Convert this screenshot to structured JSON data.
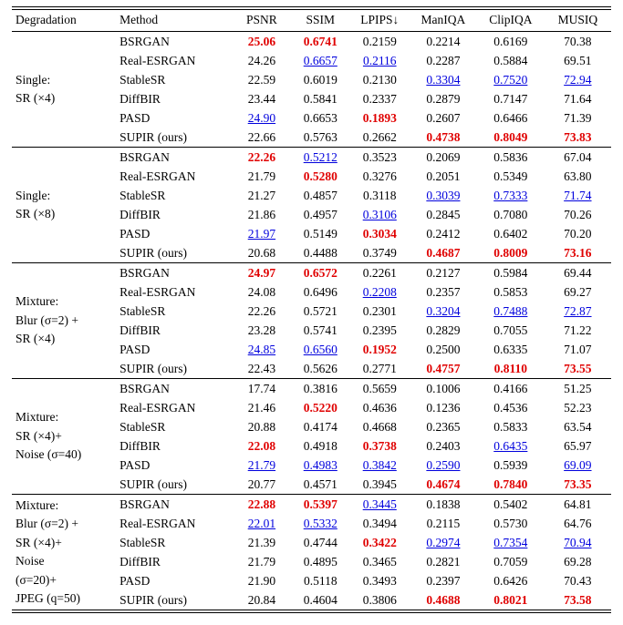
{
  "colors": {
    "best": "#e00000",
    "second": "#0000dd"
  },
  "table": {
    "columns": [
      "Degradation",
      "Method",
      "PSNR",
      "SSIM",
      "LPIPS↓",
      "ManIQA",
      "ClipIQA",
      "MUSIQ"
    ],
    "groups": [
      {
        "degradation_lines": [
          "Single:",
          "SR (×4)"
        ],
        "rows": [
          {
            "method": "BSRGAN",
            "cells": [
              {
                "v": "25.06",
                "s": "best"
              },
              {
                "v": "0.6741",
                "s": "best"
              },
              {
                "v": "0.2159",
                "s": ""
              },
              {
                "v": "0.2214",
                "s": ""
              },
              {
                "v": "0.6169",
                "s": ""
              },
              {
                "v": "70.38",
                "s": ""
              }
            ]
          },
          {
            "method": "Real-ESRGAN",
            "cells": [
              {
                "v": "24.26",
                "s": ""
              },
              {
                "v": "0.6657",
                "s": "second"
              },
              {
                "v": "0.2116",
                "s": "second"
              },
              {
                "v": "0.2287",
                "s": ""
              },
              {
                "v": "0.5884",
                "s": ""
              },
              {
                "v": "69.51",
                "s": ""
              }
            ]
          },
          {
            "method": "StableSR",
            "cells": [
              {
                "v": "22.59",
                "s": ""
              },
              {
                "v": "0.6019",
                "s": ""
              },
              {
                "v": "0.2130",
                "s": ""
              },
              {
                "v": "0.3304",
                "s": "second"
              },
              {
                "v": "0.7520",
                "s": "second"
              },
              {
                "v": "72.94",
                "s": "second"
              }
            ]
          },
          {
            "method": "DiffBIR",
            "cells": [
              {
                "v": "23.44",
                "s": ""
              },
              {
                "v": "0.5841",
                "s": ""
              },
              {
                "v": "0.2337",
                "s": ""
              },
              {
                "v": "0.2879",
                "s": ""
              },
              {
                "v": "0.7147",
                "s": ""
              },
              {
                "v": "71.64",
                "s": ""
              }
            ]
          },
          {
            "method": "PASD",
            "cells": [
              {
                "v": "24.90",
                "s": "second"
              },
              {
                "v": "0.6653",
                "s": ""
              },
              {
                "v": "0.1893",
                "s": "best"
              },
              {
                "v": "0.2607",
                "s": ""
              },
              {
                "v": "0.6466",
                "s": ""
              },
              {
                "v": "71.39",
                "s": ""
              }
            ]
          },
          {
            "method": "SUPIR (ours)",
            "cells": [
              {
                "v": "22.66",
                "s": ""
              },
              {
                "v": "0.5763",
                "s": ""
              },
              {
                "v": "0.2662",
                "s": ""
              },
              {
                "v": "0.4738",
                "s": "best"
              },
              {
                "v": "0.8049",
                "s": "best"
              },
              {
                "v": "73.83",
                "s": "best"
              }
            ]
          }
        ]
      },
      {
        "degradation_lines": [
          "Single:",
          "SR (×8)"
        ],
        "rows": [
          {
            "method": "BSRGAN",
            "cells": [
              {
                "v": "22.26",
                "s": "best"
              },
              {
                "v": "0.5212",
                "s": "second"
              },
              {
                "v": "0.3523",
                "s": ""
              },
              {
                "v": "0.2069",
                "s": ""
              },
              {
                "v": "0.5836",
                "s": ""
              },
              {
                "v": "67.04",
                "s": ""
              }
            ]
          },
          {
            "method": "Real-ESRGAN",
            "cells": [
              {
                "v": "21.79",
                "s": ""
              },
              {
                "v": "0.5280",
                "s": "best"
              },
              {
                "v": "0.3276",
                "s": ""
              },
              {
                "v": "0.2051",
                "s": ""
              },
              {
                "v": "0.5349",
                "s": ""
              },
              {
                "v": "63.80",
                "s": ""
              }
            ]
          },
          {
            "method": "StableSR",
            "cells": [
              {
                "v": "21.27",
                "s": ""
              },
              {
                "v": "0.4857",
                "s": ""
              },
              {
                "v": "0.3118",
                "s": ""
              },
              {
                "v": "0.3039",
                "s": "second"
              },
              {
                "v": "0.7333",
                "s": "second"
              },
              {
                "v": "71.74",
                "s": "second"
              }
            ]
          },
          {
            "method": "DiffBIR",
            "cells": [
              {
                "v": "21.86",
                "s": ""
              },
              {
                "v": "0.4957",
                "s": ""
              },
              {
                "v": "0.3106",
                "s": "second"
              },
              {
                "v": "0.2845",
                "s": ""
              },
              {
                "v": "0.7080",
                "s": ""
              },
              {
                "v": "70.26",
                "s": ""
              }
            ]
          },
          {
            "method": "PASD",
            "cells": [
              {
                "v": "21.97",
                "s": "second"
              },
              {
                "v": "0.5149",
                "s": ""
              },
              {
                "v": "0.3034",
                "s": "best"
              },
              {
                "v": "0.2412",
                "s": ""
              },
              {
                "v": "0.6402",
                "s": ""
              },
              {
                "v": "70.20",
                "s": ""
              }
            ]
          },
          {
            "method": "SUPIR (ours)",
            "cells": [
              {
                "v": "20.68",
                "s": ""
              },
              {
                "v": "0.4488",
                "s": ""
              },
              {
                "v": "0.3749",
                "s": ""
              },
              {
                "v": "0.4687",
                "s": "best"
              },
              {
                "v": "0.8009",
                "s": "best"
              },
              {
                "v": "73.16",
                "s": "best"
              }
            ]
          }
        ]
      },
      {
        "degradation_lines": [
          "Mixture:",
          "Blur (σ=2) +",
          "SR (×4)"
        ],
        "rows": [
          {
            "method": "BSRGAN",
            "cells": [
              {
                "v": "24.97",
                "s": "best"
              },
              {
                "v": "0.6572",
                "s": "best"
              },
              {
                "v": "0.2261",
                "s": ""
              },
              {
                "v": "0.2127",
                "s": ""
              },
              {
                "v": "0.5984",
                "s": ""
              },
              {
                "v": "69.44",
                "s": ""
              }
            ]
          },
          {
            "method": "Real-ESRGAN",
            "cells": [
              {
                "v": "24.08",
                "s": ""
              },
              {
                "v": "0.6496",
                "s": ""
              },
              {
                "v": "0.2208",
                "s": "second"
              },
              {
                "v": "0.2357",
                "s": ""
              },
              {
                "v": "0.5853",
                "s": ""
              },
              {
                "v": "69.27",
                "s": ""
              }
            ]
          },
          {
            "method": "StableSR",
            "cells": [
              {
                "v": "22.26",
                "s": ""
              },
              {
                "v": "0.5721",
                "s": ""
              },
              {
                "v": "0.2301",
                "s": ""
              },
              {
                "v": "0.3204",
                "s": "second"
              },
              {
                "v": "0.7488",
                "s": "second"
              },
              {
                "v": "72.87",
                "s": "second"
              }
            ]
          },
          {
            "method": "DiffBIR",
            "cells": [
              {
                "v": "23.28",
                "s": ""
              },
              {
                "v": "0.5741",
                "s": ""
              },
              {
                "v": "0.2395",
                "s": ""
              },
              {
                "v": "0.2829",
                "s": ""
              },
              {
                "v": "0.7055",
                "s": ""
              },
              {
                "v": "71.22",
                "s": ""
              }
            ]
          },
          {
            "method": "PASD",
            "cells": [
              {
                "v": "24.85",
                "s": "second"
              },
              {
                "v": "0.6560",
                "s": "second"
              },
              {
                "v": "0.1952",
                "s": "best"
              },
              {
                "v": "0.2500",
                "s": ""
              },
              {
                "v": "0.6335",
                "s": ""
              },
              {
                "v": "71.07",
                "s": ""
              }
            ]
          },
          {
            "method": "SUPIR (ours)",
            "cells": [
              {
                "v": "22.43",
                "s": ""
              },
              {
                "v": "0.5626",
                "s": ""
              },
              {
                "v": "0.2771",
                "s": ""
              },
              {
                "v": "0.4757",
                "s": "best"
              },
              {
                "v": "0.8110",
                "s": "best"
              },
              {
                "v": "73.55",
                "s": "best"
              }
            ]
          }
        ]
      },
      {
        "degradation_lines": [
          "Mixture:",
          "SR (×4)+",
          "Noise (σ=40)"
        ],
        "rows": [
          {
            "method": "BSRGAN",
            "cells": [
              {
                "v": "17.74",
                "s": ""
              },
              {
                "v": "0.3816",
                "s": ""
              },
              {
                "v": "0.5659",
                "s": ""
              },
              {
                "v": "0.1006",
                "s": ""
              },
              {
                "v": "0.4166",
                "s": ""
              },
              {
                "v": "51.25",
                "s": ""
              }
            ]
          },
          {
            "method": "Real-ESRGAN",
            "cells": [
              {
                "v": "21.46",
                "s": ""
              },
              {
                "v": "0.5220",
                "s": "best"
              },
              {
                "v": "0.4636",
                "s": ""
              },
              {
                "v": "0.1236",
                "s": ""
              },
              {
                "v": "0.4536",
                "s": ""
              },
              {
                "v": "52.23",
                "s": ""
              }
            ]
          },
          {
            "method": "StableSR",
            "cells": [
              {
                "v": "20.88",
                "s": ""
              },
              {
                "v": "0.4174",
                "s": ""
              },
              {
                "v": "0.4668",
                "s": ""
              },
              {
                "v": "0.2365",
                "s": ""
              },
              {
                "v": "0.5833",
                "s": ""
              },
              {
                "v": "63.54",
                "s": ""
              }
            ]
          },
          {
            "method": "DiffBIR",
            "cells": [
              {
                "v": "22.08",
                "s": "best"
              },
              {
                "v": "0.4918",
                "s": ""
              },
              {
                "v": "0.3738",
                "s": "best"
              },
              {
                "v": "0.2403",
                "s": ""
              },
              {
                "v": "0.6435",
                "s": "second"
              },
              {
                "v": "65.97",
                "s": ""
              }
            ]
          },
          {
            "method": "PASD",
            "cells": [
              {
                "v": "21.79",
                "s": "second"
              },
              {
                "v": "0.4983",
                "s": "second"
              },
              {
                "v": "0.3842",
                "s": "second"
              },
              {
                "v": "0.2590",
                "s": "second"
              },
              {
                "v": "0.5939",
                "s": ""
              },
              {
                "v": "69.09",
                "s": "second"
              }
            ]
          },
          {
            "method": "SUPIR (ours)",
            "cells": [
              {
                "v": "20.77",
                "s": ""
              },
              {
                "v": "0.4571",
                "s": ""
              },
              {
                "v": "0.3945",
                "s": ""
              },
              {
                "v": "0.4674",
                "s": "best"
              },
              {
                "v": "0.7840",
                "s": "best"
              },
              {
                "v": "73.35",
                "s": "best"
              }
            ]
          }
        ]
      },
      {
        "degradation_lines": [
          "Mixture:",
          "Blur (σ=2) +",
          "SR (×4)+",
          "Noise",
          "(σ=20)+",
          "JPEG (q=50)"
        ],
        "rows": [
          {
            "method": "BSRGAN",
            "cells": [
              {
                "v": "22.88",
                "s": "best"
              },
              {
                "v": "0.5397",
                "s": "best"
              },
              {
                "v": "0.3445",
                "s": "second"
              },
              {
                "v": "0.1838",
                "s": ""
              },
              {
                "v": "0.5402",
                "s": ""
              },
              {
                "v": "64.81",
                "s": ""
              }
            ]
          },
          {
            "method": "Real-ESRGAN",
            "cells": [
              {
                "v": "22.01",
                "s": "second"
              },
              {
                "v": "0.5332",
                "s": "second"
              },
              {
                "v": "0.3494",
                "s": ""
              },
              {
                "v": "0.2115",
                "s": ""
              },
              {
                "v": "0.5730",
                "s": ""
              },
              {
                "v": "64.76",
                "s": ""
              }
            ]
          },
          {
            "method": "StableSR",
            "cells": [
              {
                "v": "21.39",
                "s": ""
              },
              {
                "v": "0.4744",
                "s": ""
              },
              {
                "v": "0.3422",
                "s": "best"
              },
              {
                "v": "0.2974",
                "s": "second"
              },
              {
                "v": "0.7354",
                "s": "second"
              },
              {
                "v": "70.94",
                "s": "second"
              }
            ]
          },
          {
            "method": "DiffBIR",
            "cells": [
              {
                "v": "21.79",
                "s": ""
              },
              {
                "v": "0.4895",
                "s": ""
              },
              {
                "v": "0.3465",
                "s": ""
              },
              {
                "v": "0.2821",
                "s": ""
              },
              {
                "v": "0.7059",
                "s": ""
              },
              {
                "v": "69.28",
                "s": ""
              }
            ]
          },
          {
            "method": "PASD",
            "cells": [
              {
                "v": "21.90",
                "s": ""
              },
              {
                "v": "0.5118",
                "s": ""
              },
              {
                "v": "0.3493",
                "s": ""
              },
              {
                "v": "0.2397",
                "s": ""
              },
              {
                "v": "0.6426",
                "s": ""
              },
              {
                "v": "70.43",
                "s": ""
              }
            ]
          },
          {
            "method": "SUPIR (ours)",
            "cells": [
              {
                "v": "20.84",
                "s": ""
              },
              {
                "v": "0.4604",
                "s": ""
              },
              {
                "v": "0.3806",
                "s": ""
              },
              {
                "v": "0.4688",
                "s": "best"
              },
              {
                "v": "0.8021",
                "s": "best"
              },
              {
                "v": "73.58",
                "s": "best"
              }
            ]
          }
        ]
      }
    ]
  }
}
